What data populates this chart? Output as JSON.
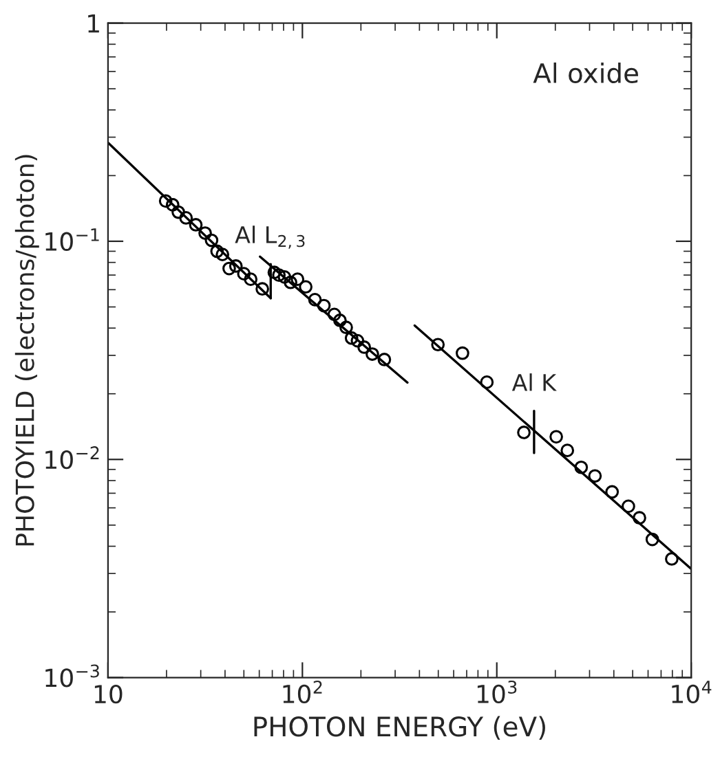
{
  "chart_data": {
    "type": "scatter",
    "xlabel": "PHOTON ENERGY (eV)",
    "ylabel": "PHOTOYIELD (electrons/photon)",
    "log": "xy",
    "grid": false,
    "legend": false,
    "marker": "circle",
    "xlim": [
      10,
      10000
    ],
    "ylim": [
      0.001,
      1
    ],
    "xticks": [
      10,
      {
        "value": 100,
        "label": "10$^{2}$"
      },
      {
        "value": 1000,
        "label": "10$^{3}$"
      },
      {
        "value": 10000,
        "label": "10$^{4}$"
      }
    ],
    "yticks": [
      {
        "value": 0.001,
        "label": "10$^{−3}$"
      },
      {
        "value": 0.01,
        "label": "10$^{−2}$"
      },
      {
        "value": 0.1,
        "label": "10$^{−1}$"
      },
      1
    ],
    "series": [
      {
        "color": "#000000",
        "x": [
          19.8,
          21.5,
          23.0,
          25.2,
          28.3,
          31.6,
          34.1,
          36.4,
          38.8,
          42.0,
          45.5,
          50.0,
          54.2,
          62.2,
          71.7,
          75.7,
          80.9,
          86.9,
          94.4,
          104,
          116,
          129,
          146,
          156,
          168,
          179,
          192,
          208,
          229,
          264
        ],
        "values": [
          0.153,
          0.147,
          0.136,
          0.128,
          0.119,
          0.109,
          0.101,
          0.09,
          0.087,
          0.075,
          0.077,
          0.071,
          0.067,
          0.0605,
          0.072,
          0.07,
          0.0686,
          0.0648,
          0.067,
          0.0618,
          0.054,
          0.0507,
          0.0462,
          0.0434,
          0.0403,
          0.036,
          0.035,
          0.0327,
          0.0304,
          0.0287
        ]
      },
      {
        "color": "#000000",
        "x": [
          498,
          666,
          889,
          1378,
          2022,
          2306,
          2717,
          3199,
          3918,
          4753,
          5418,
          6310,
          7943
        ],
        "values": [
          0.0336,
          0.0307,
          0.0226,
          0.0133,
          0.0127,
          0.011,
          0.0092,
          0.0084,
          0.0071,
          0.0061,
          0.0054,
          0.0043,
          0.0035
        ]
      },
      {
        "type": "line",
        "color": "#000000",
        "marker": "none",
        "line_style": "solid",
        "x": [
          10,
          68.7
        ],
        "values": [
          0.283,
          0.0548
        ]
      },
      {
        "type": "line",
        "color": "#000000",
        "marker": "none",
        "line_style": "solid",
        "x": [
          68.7,
          68.7
        ],
        "values": [
          0.0548,
          0.0786
        ]
      },
      {
        "type": "line",
        "color": "#000000",
        "marker": "none",
        "line_style": "solid",
        "x": [
          60.5,
          347
        ],
        "values": [
          0.085,
          0.0225
        ]
      },
      {
        "type": "line",
        "color": "#000000",
        "marker": "none",
        "line_style": "solid",
        "x": [
          378,
          10000
        ],
        "values": [
          0.0411,
          0.00315
        ]
      },
      {
        "type": "line",
        "color": "#000000",
        "marker": "none",
        "line_style": "solid",
        "x": [
          1555,
          1555
        ],
        "values": [
          0.0107,
          0.0167
        ]
      }
    ],
    "annotations": [
      "Al oxide",
      {
        "text": "Al L$_{2,3}$",
        "x": 68.7,
        "y": 0.0786
      },
      {
        "text": "Al K",
        "x": 1555,
        "y": 0.0167
      }
    ]
  }
}
